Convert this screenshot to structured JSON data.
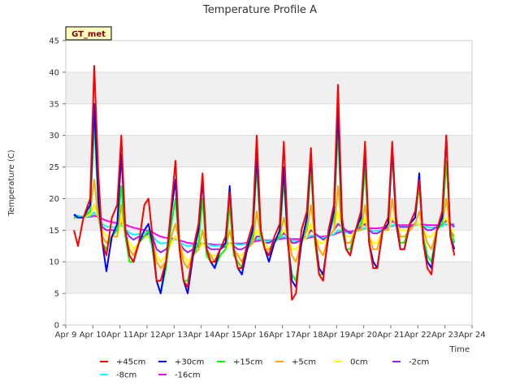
{
  "chart_data": {
    "type": "line",
    "title": "Temperature Profile A",
    "xlabel": "Time",
    "ylabel": "Temperature (C)",
    "badge": "GT_met",
    "ylim": [
      0,
      45
    ],
    "yticks": [
      0,
      5,
      10,
      15,
      20,
      25,
      30,
      35,
      40,
      45
    ],
    "xlim": [
      0,
      15
    ],
    "xtick_labels": [
      "Apr 9",
      "Apr 10",
      "Apr 11",
      "Apr 12",
      "Apr 13",
      "Apr 14",
      "Apr 15",
      "Apr 16",
      "Apr 17",
      "Apr 18",
      "Apr 19",
      "Apr 20",
      "Apr 21",
      "Apr 22",
      "Apr 23",
      "Apr 24"
    ],
    "grid": true,
    "legend_position": "bottom",
    "x": [
      0.3,
      0.45,
      0.65,
      0.9,
      1.05,
      1.2,
      1.35,
      1.5,
      1.7,
      1.9,
      2.05,
      2.2,
      2.35,
      2.5,
      2.7,
      2.9,
      3.05,
      3.2,
      3.35,
      3.5,
      3.7,
      3.9,
      4.05,
      4.2,
      4.35,
      4.5,
      4.7,
      4.9,
      5.05,
      5.2,
      5.35,
      5.5,
      5.7,
      5.9,
      6.05,
      6.2,
      6.35,
      6.5,
      6.7,
      6.9,
      7.05,
      7.2,
      7.35,
      7.5,
      7.7,
      7.9,
      8.05,
      8.2,
      8.35,
      8.5,
      8.7,
      8.9,
      9.05,
      9.2,
      9.35,
      9.5,
      9.7,
      9.9,
      10.05,
      10.2,
      10.35,
      10.5,
      10.7,
      10.9,
      11.05,
      11.2,
      11.35,
      11.5,
      11.7,
      11.9,
      12.05,
      12.2,
      12.35,
      12.5,
      12.7,
      12.9,
      13.05,
      13.2,
      13.35,
      13.5,
      13.7,
      13.9,
      14.05,
      14.2,
      14.35
    ],
    "series": [
      {
        "name": "+45cm",
        "color": "#ff0000",
        "values": [
          15,
          12.5,
          17,
          20,
          41,
          24,
          13,
          11,
          17,
          19,
          30,
          15,
          11,
          10,
          13,
          19,
          20,
          14,
          7,
          7,
          10,
          19,
          26,
          12,
          7,
          6,
          12,
          16,
          24,
          12,
          10,
          10,
          12,
          14,
          21,
          12,
          9,
          9,
          13,
          16,
          30,
          15,
          12,
          11,
          14,
          16,
          29,
          14,
          4,
          5,
          15,
          18,
          28,
          14,
          8,
          7,
          15,
          19,
          38,
          17,
          12,
          11,
          15,
          18,
          29,
          13,
          9,
          9,
          15,
          17,
          29,
          17,
          12,
          12,
          16,
          18,
          23,
          13,
          9,
          8,
          15,
          18,
          30,
          14,
          11
        ]
      },
      {
        "name": "+30cm",
        "color": "#0000ff",
        "values": [
          17.5,
          17,
          17,
          19,
          35,
          20,
          13,
          8.5,
          14,
          16,
          27,
          15,
          11,
          10,
          13,
          15,
          16,
          13,
          7,
          5,
          10,
          18,
          23,
          12,
          7,
          5,
          11,
          15,
          23,
          12,
          10,
          9,
          12,
          13,
          22,
          12,
          9,
          8,
          12,
          15,
          27,
          15,
          12,
          10,
          13,
          15,
          25,
          13,
          7,
          6,
          13,
          17,
          27,
          14,
          9,
          8,
          14,
          18,
          34,
          16,
          12,
          11,
          15,
          17,
          28,
          13,
          10,
          9,
          15,
          16,
          28,
          16,
          12,
          12,
          16,
          17,
          24,
          13,
          10,
          9,
          15,
          17,
          30,
          14,
          12
        ]
      },
      {
        "name": "+15cm",
        "color": "#00ff00",
        "values": [
          17,
          17,
          17,
          18,
          32,
          19,
          13,
          12,
          14,
          15,
          22,
          14,
          10,
          10,
          13,
          14,
          15,
          12,
          7,
          5,
          9,
          16,
          20,
          12,
          7,
          7,
          11,
          13,
          20,
          11,
          10,
          9,
          11,
          12,
          19,
          11,
          10,
          9,
          12,
          14,
          25,
          14,
          12,
          11,
          13,
          14,
          23,
          13,
          8,
          7,
          13,
          16,
          25,
          13,
          8,
          8,
          14,
          17,
          31,
          15,
          12,
          12,
          15,
          16,
          25,
          13,
          10,
          9,
          15,
          16,
          27,
          16,
          13,
          13,
          16,
          17,
          22,
          14,
          11,
          10,
          15,
          16,
          26,
          15,
          13
        ]
      },
      {
        "name": "+5cm",
        "color": "#ffa500",
        "values": [
          17.5,
          17,
          17,
          18,
          23,
          17,
          14,
          13,
          14,
          14,
          19,
          14,
          12,
          11,
          13,
          14,
          15,
          13,
          10,
          9,
          10,
          14,
          16,
          13,
          10,
          9,
          11,
          12,
          15,
          12,
          11,
          10,
          11,
          12,
          15,
          12,
          11,
          10,
          12,
          13,
          18,
          14,
          12,
          12,
          13,
          14,
          17,
          14,
          11,
          10,
          13,
          15,
          19,
          14,
          12,
          11,
          14,
          15,
          22,
          15,
          13,
          13,
          15,
          15,
          19,
          14,
          12,
          12,
          15,
          15,
          20,
          16,
          14,
          14,
          15,
          16,
          18,
          15,
          13,
          12,
          15,
          16,
          20,
          15,
          14
        ]
      },
      {
        "name": "0cm",
        "color": "#ffff00",
        "values": [
          17.5,
          17,
          17,
          17.5,
          19,
          17,
          15,
          14,
          14,
          14,
          17,
          14,
          13,
          12,
          13,
          14,
          14,
          13,
          11,
          10,
          11,
          13,
          14,
          13,
          11,
          10,
          11,
          12,
          13,
          12,
          11,
          11,
          11,
          12,
          13,
          12,
          11,
          11,
          12,
          13,
          15,
          14,
          13,
          12,
          13,
          14,
          15,
          14,
          12,
          12,
          13,
          14,
          16,
          14,
          13,
          13,
          14,
          15,
          18,
          15,
          14,
          14,
          15,
          15,
          17,
          14,
          13,
          13,
          15,
          15,
          17,
          16,
          15,
          15,
          15,
          16,
          16,
          15,
          14,
          14,
          15,
          16,
          17,
          15,
          15
        ]
      },
      {
        "name": "-2cm",
        "color": "#a020f0",
        "values": [
          17.5,
          17,
          17,
          17.5,
          19,
          17.5,
          15.5,
          15,
          15,
          15,
          16.5,
          15,
          14,
          13.5,
          14,
          14,
          14.5,
          14,
          12,
          11.5,
          12,
          13,
          14,
          13,
          12,
          11.5,
          12,
          12.5,
          13,
          12.5,
          12,
          12,
          12,
          12.5,
          13,
          12.5,
          12,
          12,
          12.5,
          13,
          14,
          14,
          13,
          13,
          13.5,
          14,
          14.5,
          14,
          13,
          13,
          13.5,
          14,
          15,
          14.5,
          14,
          13.5,
          14,
          15,
          16,
          15.5,
          15,
          14.5,
          15,
          15.5,
          16,
          15,
          14.5,
          14.5,
          15,
          15.5,
          16.5,
          16,
          15.5,
          15.5,
          15.5,
          16,
          16,
          15.5,
          15,
          15,
          15.5,
          16,
          16.5,
          16,
          15.5
        ]
      },
      {
        "name": "-8cm",
        "color": "#00ffff",
        "values": [
          17.5,
          17.3,
          17.1,
          17.2,
          17.8,
          17.2,
          16,
          15.6,
          15.5,
          15.4,
          15.8,
          15.2,
          14.6,
          14.3,
          14.4,
          14.5,
          14.6,
          14.2,
          13.3,
          12.9,
          13,
          13.3,
          13.6,
          13.2,
          12.7,
          12.5,
          12.6,
          12.8,
          13,
          12.8,
          12.6,
          12.5,
          12.6,
          12.8,
          13,
          12.9,
          12.7,
          12.7,
          12.9,
          13.2,
          13.6,
          13.6,
          13.3,
          13.3,
          13.5,
          13.8,
          14,
          13.8,
          13.4,
          13.3,
          13.5,
          13.8,
          14.2,
          14.1,
          13.9,
          13.8,
          14,
          14.4,
          15,
          14.9,
          14.6,
          14.5,
          14.8,
          15,
          15.4,
          15.1,
          14.9,
          14.9,
          15.1,
          15.3,
          15.8,
          15.8,
          15.6,
          15.6,
          15.6,
          15.8,
          15.9,
          15.7,
          15.5,
          15.4,
          15.5,
          15.7,
          16,
          15.9,
          15.7
        ]
      },
      {
        "name": "-16cm",
        "color": "#ff00ff",
        "values": [
          17.3,
          17.2,
          17.1,
          17.1,
          17.3,
          17.1,
          16.8,
          16.5,
          16.3,
          16.1,
          16.1,
          15.9,
          15.6,
          15.4,
          15.2,
          15,
          14.9,
          14.7,
          14.3,
          14,
          13.8,
          13.7,
          13.6,
          13.4,
          13.2,
          13,
          12.9,
          12.9,
          12.9,
          12.8,
          12.8,
          12.7,
          12.7,
          12.8,
          12.9,
          12.9,
          12.9,
          12.9,
          13,
          13.1,
          13.3,
          13.4,
          13.4,
          13.4,
          13.5,
          13.6,
          13.7,
          13.7,
          13.6,
          13.6,
          13.6,
          13.7,
          13.9,
          14,
          14,
          14,
          14.1,
          14.3,
          14.6,
          14.8,
          14.8,
          14.8,
          14.9,
          15.1,
          15.3,
          15.3,
          15.3,
          15.3,
          15.4,
          15.5,
          15.7,
          15.8,
          15.8,
          15.8,
          15.8,
          15.9,
          15.9,
          15.9,
          15.8,
          15.8,
          15.8,
          15.8,
          15.9,
          15.9,
          15.9
        ]
      }
    ]
  }
}
